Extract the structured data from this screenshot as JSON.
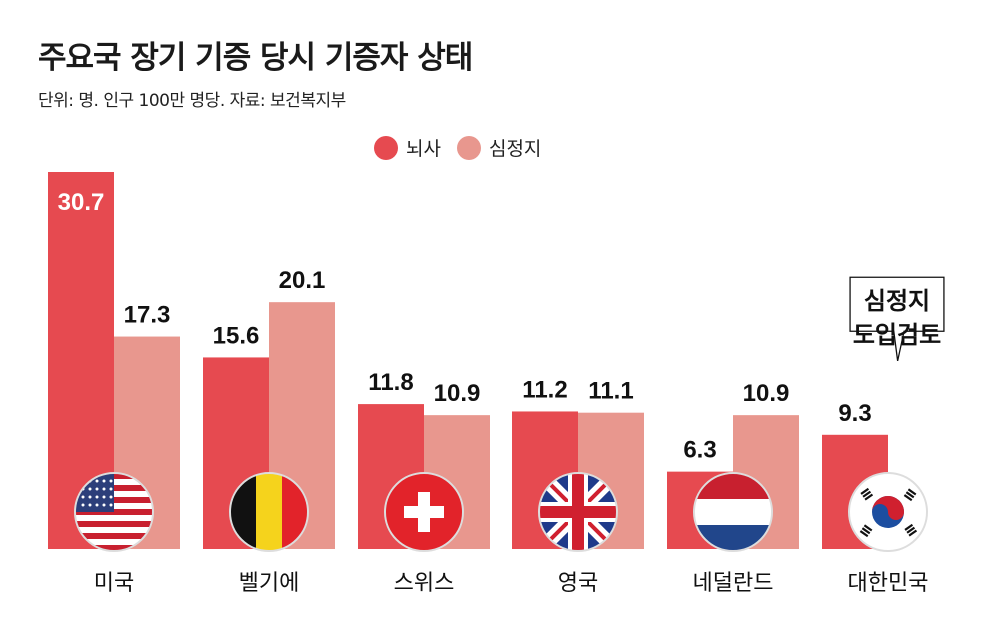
{
  "title": "주요국 장기 기증 당시 기증자 상태",
  "subtitle": "단위: 명. 인구 100만 명당. 자료: 보건복지부",
  "colors": {
    "brain": "#e64a50",
    "cardiac": "#e8978e"
  },
  "chart_data": {
    "type": "bar",
    "title": "주요국 장기 기증 당시 기증자 상태",
    "categories": [
      "미국",
      "벨기에",
      "스위스",
      "영국",
      "네덜란드",
      "대한민국"
    ],
    "series": [
      {
        "name": "뇌사",
        "values": [
          30.7,
          15.6,
          11.8,
          11.2,
          6.3,
          9.3
        ]
      },
      {
        "name": "심정지",
        "values": [
          17.3,
          20.1,
          10.9,
          11.1,
          10.9,
          null
        ]
      }
    ],
    "legend": "top-center",
    "annotation": {
      "line1": "심정지",
      "line2": "도입검토",
      "category": "대한민국"
    }
  }
}
